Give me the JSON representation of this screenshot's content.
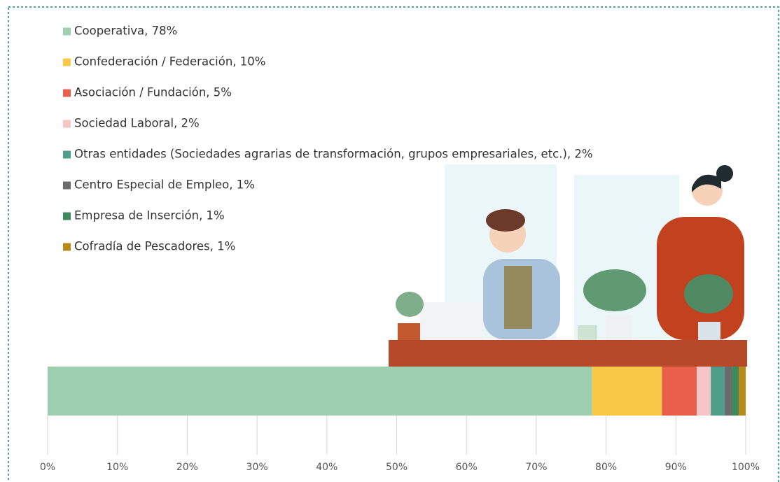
{
  "chart_data": {
    "type": "stacked-bar-horizontal",
    "series": [
      {
        "name": "Cooperativa, 78%",
        "color": "#9ecfb0",
        "values": [
          78
        ]
      },
      {
        "name": "Confederación / Federación, 10%",
        "color": "#f9c846",
        "values": [
          10
        ]
      },
      {
        "name": "Asociación / Fundación, 5%",
        "color": "#e8604c",
        "values": [
          5
        ]
      },
      {
        "name": "Sociedad Laboral, 2%",
        "color": "#f6c6c6",
        "values": [
          2
        ]
      },
      {
        "name": "Otras entidades (Sociedades agrarias de transformación, grupos empresariales, etc.), 2%",
        "color": "#4e9e8a",
        "values": [
          2
        ]
      },
      {
        "name": "Centro Especial de Empleo, 1%",
        "color": "#6b6b6b",
        "values": [
          1
        ]
      },
      {
        "name": "Empresa de Inserción, 1%",
        "color": "#3e8a5e",
        "values": [
          1
        ]
      },
      {
        "name": "Cofradía de Pescadores, 1%",
        "color": "#b88a1a",
        "values": [
          1
        ]
      }
    ],
    "xlim": [
      0,
      100
    ],
    "xticks": [
      {
        "value": 0,
        "label": "0%"
      },
      {
        "value": 10,
        "label": "10%"
      },
      {
        "value": 20,
        "label": "20%"
      },
      {
        "value": 30,
        "label": "30%"
      },
      {
        "value": 40,
        "label": "40%"
      },
      {
        "value": 50,
        "label": "50%"
      },
      {
        "value": 60,
        "label": "60%"
      },
      {
        "value": 70,
        "label": "70%"
      },
      {
        "value": 80,
        "label": "80%"
      },
      {
        "value": 90,
        "label": "90%"
      },
      {
        "value": 100,
        "label": "100%"
      }
    ],
    "grid": true
  }
}
